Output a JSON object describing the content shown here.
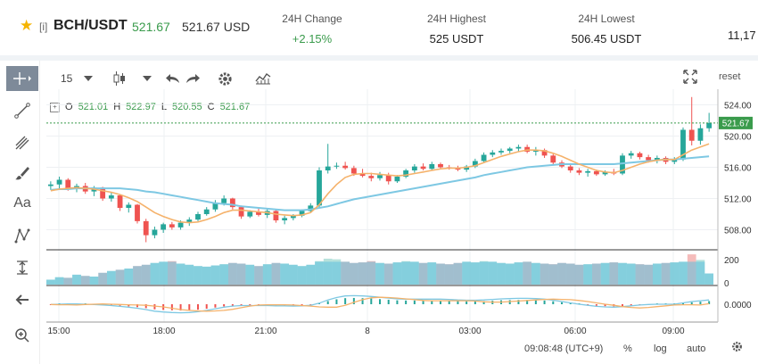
{
  "header": {
    "star_icon": "star-icon",
    "market_flag": "[i]",
    "pair": "BCH/USDT",
    "price": "521.67",
    "price_usd": "521.67 USD",
    "stats": [
      {
        "label": "24H Change",
        "value": "+2.15%"
      },
      {
        "label": "24H Highest",
        "value": "525 USDT"
      },
      {
        "label": "24H Lowest",
        "value": "506.45 USDT"
      }
    ],
    "truncated_stat": "11,17"
  },
  "toolbar": {
    "interval": "15",
    "reset_label": "reset",
    "icons": [
      "crosshair-icon",
      "trendline-icon",
      "fork-icon",
      "brush-icon",
      "text-icon",
      "pattern-icon",
      "measure-icon",
      "back-arrow-icon",
      "zoom-icon",
      "candle-type-icon",
      "undo-icon",
      "redo-icon",
      "settings-icon",
      "indicators-icon",
      "fullscreen-icon"
    ]
  },
  "left_tools": {
    "text_tool_label": "Aa"
  },
  "ohlc": {
    "o_label": "O",
    "o": "521.01",
    "h_label": "H",
    "h": "522.97",
    "l_label": "L",
    "l": "520.55",
    "c_label": "C",
    "c": "521.67"
  },
  "axes": {
    "price_ticks": [
      "524.00",
      "520.00",
      "516.00",
      "512.00",
      "508.00"
    ],
    "last_price_tag": "521.67",
    "volume_ticks": [
      "200",
      "0"
    ],
    "macd_tick": "0.0000",
    "time_ticks": [
      "15:00",
      "18:00",
      "21:00",
      "8",
      "03:00",
      "06:00",
      "09:00"
    ]
  },
  "status": {
    "time": "09:08:48 (UTC+9)",
    "percent": "%",
    "log": "log",
    "auto": "auto"
  },
  "colors": {
    "up": "#26a69a",
    "down": "#ef5350",
    "ma_fast": "#f5b26b",
    "ma_slow": "#7ec8e3",
    "price_line": "#3a9b4c"
  },
  "chart_data": {
    "type": "candlestick",
    "ylim": [
      506,
      526
    ],
    "candles": [
      [
        513.6,
        514.2,
        513.1,
        513.8
      ],
      [
        513.8,
        514.8,
        513.3,
        514.4
      ],
      [
        514.4,
        514.6,
        513.0,
        513.3
      ],
      [
        513.3,
        513.9,
        512.8,
        513.6
      ],
      [
        513.6,
        514.0,
        512.6,
        512.9
      ],
      [
        512.9,
        513.6,
        512.3,
        513.4
      ],
      [
        513.4,
        513.5,
        511.7,
        512.0
      ],
      [
        512.0,
        512.8,
        511.6,
        512.4
      ],
      [
        512.4,
        512.5,
        510.4,
        510.8
      ],
      [
        510.8,
        511.5,
        510.2,
        511.2
      ],
      [
        511.2,
        511.3,
        508.8,
        509.1
      ],
      [
        509.1,
        509.4,
        506.4,
        507.3
      ],
      [
        507.3,
        508.4,
        506.9,
        508.0
      ],
      [
        508.0,
        508.9,
        507.6,
        508.7
      ],
      [
        508.7,
        509.0,
        508.0,
        508.3
      ],
      [
        508.3,
        509.2,
        508.0,
        508.9
      ],
      [
        508.9,
        509.6,
        508.5,
        509.3
      ],
      [
        509.3,
        510.3,
        509.1,
        510.0
      ],
      [
        510.0,
        510.9,
        509.8,
        510.6
      ],
      [
        510.6,
        511.8,
        510.3,
        511.4
      ],
      [
        511.4,
        512.4,
        511.1,
        512.0
      ],
      [
        512.0,
        512.1,
        510.6,
        510.9
      ],
      [
        510.9,
        511.1,
        509.4,
        509.7
      ],
      [
        509.7,
        510.5,
        509.5,
        510.3
      ],
      [
        510.3,
        510.9,
        509.7,
        509.9
      ],
      [
        509.9,
        510.7,
        509.5,
        510.4
      ],
      [
        510.4,
        510.6,
        508.9,
        509.2
      ],
      [
        509.2,
        509.8,
        508.7,
        509.5
      ],
      [
        509.5,
        510.0,
        509.2,
        509.8
      ],
      [
        509.8,
        510.6,
        509.6,
        510.4
      ],
      [
        510.4,
        511.4,
        510.2,
        511.1
      ],
      [
        511.1,
        516.0,
        510.9,
        515.6
      ],
      [
        515.6,
        519.0,
        515.2,
        516.1
      ],
      [
        516.1,
        516.6,
        515.8,
        516.2
      ],
      [
        516.2,
        516.7,
        515.7,
        515.9
      ],
      [
        515.9,
        516.2,
        514.9,
        515.2
      ],
      [
        515.2,
        515.8,
        514.7,
        514.9
      ],
      [
        514.9,
        515.3,
        514.2,
        514.6
      ],
      [
        514.6,
        515.4,
        514.3,
        515.0
      ],
      [
        515.0,
        515.3,
        513.8,
        514.2
      ],
      [
        514.2,
        515.0,
        514.0,
        514.8
      ],
      [
        514.8,
        515.8,
        514.6,
        515.6
      ],
      [
        515.6,
        516.4,
        515.3,
        516.1
      ],
      [
        516.1,
        516.5,
        515.6,
        515.8
      ],
      [
        515.8,
        516.7,
        515.6,
        516.4
      ],
      [
        516.4,
        516.6,
        515.8,
        516.0
      ],
      [
        516.0,
        516.3,
        515.7,
        515.9
      ],
      [
        515.9,
        516.2,
        515.5,
        515.7
      ],
      [
        515.7,
        516.3,
        515.4,
        516.1
      ],
      [
        516.1,
        517.1,
        515.9,
        516.8
      ],
      [
        516.8,
        517.9,
        516.6,
        517.6
      ],
      [
        517.6,
        518.2,
        517.3,
        517.9
      ],
      [
        517.9,
        518.4,
        517.6,
        518.1
      ],
      [
        518.1,
        518.6,
        517.8,
        518.4
      ],
      [
        518.4,
        518.9,
        518.0,
        518.6
      ],
      [
        518.6,
        518.9,
        517.8,
        518.0
      ],
      [
        518.0,
        518.6,
        517.5,
        518.2
      ],
      [
        518.2,
        518.4,
        517.2,
        517.5
      ],
      [
        517.5,
        517.7,
        516.3,
        516.6
      ],
      [
        516.6,
        516.9,
        515.9,
        516.1
      ],
      [
        516.1,
        516.4,
        515.3,
        515.6
      ],
      [
        515.6,
        515.9,
        515.0,
        515.3
      ],
      [
        515.3,
        515.8,
        514.8,
        515.5
      ],
      [
        515.5,
        515.7,
        514.9,
        515.1
      ],
      [
        515.1,
        515.6,
        514.9,
        515.4
      ],
      [
        515.4,
        515.8,
        515.0,
        515.2
      ],
      [
        515.2,
        517.8,
        515.0,
        517.5
      ],
      [
        517.5,
        518.1,
        517.1,
        517.8
      ],
      [
        517.8,
        518.0,
        517.0,
        517.3
      ],
      [
        517.3,
        517.6,
        516.6,
        516.9
      ],
      [
        516.9,
        517.5,
        516.5,
        517.2
      ],
      [
        517.2,
        517.4,
        516.4,
        516.7
      ],
      [
        516.7,
        517.3,
        516.4,
        517.0
      ],
      [
        517.0,
        521.1,
        516.8,
        520.8
      ],
      [
        520.8,
        525.0,
        518.8,
        519.4
      ],
      [
        519.4,
        521.5,
        518.9,
        521.0
      ],
      [
        521.0,
        522.97,
        520.55,
        521.67
      ]
    ],
    "ma_fast": [
      513.0,
      513.2,
      513.3,
      513.4,
      513.3,
      513.2,
      513.0,
      512.8,
      512.5,
      512.1,
      511.6,
      510.9,
      510.2,
      509.7,
      509.3,
      509.0,
      508.9,
      509.0,
      509.3,
      509.7,
      510.2,
      510.5,
      510.5,
      510.4,
      510.3,
      510.2,
      510.0,
      509.9,
      509.8,
      509.9,
      510.2,
      511.2,
      512.6,
      513.8,
      514.7,
      515.1,
      515.2,
      515.2,
      515.1,
      515.0,
      514.9,
      515.0,
      515.2,
      515.4,
      515.6,
      515.8,
      515.9,
      515.9,
      516.0,
      516.2,
      516.6,
      517.0,
      517.4,
      517.7,
      518.0,
      518.2,
      518.2,
      518.1,
      517.8,
      517.4,
      516.9,
      516.4,
      516.0,
      515.6,
      515.4,
      515.3,
      515.6,
      516.0,
      516.4,
      516.7,
      516.9,
      517.0,
      517.0,
      517.6,
      518.2,
      518.6,
      519.0
    ],
    "ma_slow": [
      513.1,
      513.2,
      513.2,
      513.3,
      513.3,
      513.3,
      513.3,
      513.3,
      513.3,
      513.2,
      513.1,
      512.9,
      512.8,
      512.6,
      512.4,
      512.2,
      512.0,
      511.8,
      511.6,
      511.4,
      511.3,
      511.2,
      511.0,
      510.9,
      510.8,
      510.7,
      510.6,
      510.5,
      510.5,
      510.5,
      510.6,
      510.8,
      511.0,
      511.3,
      511.6,
      511.9,
      512.1,
      512.3,
      512.5,
      512.7,
      512.9,
      513.1,
      513.3,
      513.5,
      513.7,
      513.9,
      514.1,
      514.3,
      514.5,
      514.7,
      515.0,
      515.2,
      515.4,
      515.6,
      515.8,
      516.0,
      516.1,
      516.2,
      516.3,
      516.4,
      516.4,
      516.4,
      516.4,
      516.4,
      516.4,
      516.4,
      516.5,
      516.6,
      516.7,
      516.8,
      516.9,
      517.0,
      517.0,
      517.1,
      517.2,
      517.3,
      517.4
    ],
    "volume": [
      40,
      60,
      55,
      80,
      70,
      65,
      95,
      110,
      120,
      130,
      150,
      160,
      175,
      185,
      190,
      170,
      160,
      150,
      145,
      155,
      165,
      175,
      170,
      160,
      150,
      165,
      175,
      170,
      160,
      150,
      160,
      190,
      210,
      205,
      185,
      175,
      180,
      190,
      175,
      170,
      180,
      190,
      185,
      175,
      180,
      170,
      165,
      175,
      185,
      180,
      190,
      185,
      175,
      170,
      180,
      185,
      175,
      170,
      165,
      175,
      170,
      160,
      165,
      170,
      175,
      180,
      175,
      170,
      165,
      160,
      170,
      175,
      180,
      185,
      245,
      200,
      90
    ]
  }
}
